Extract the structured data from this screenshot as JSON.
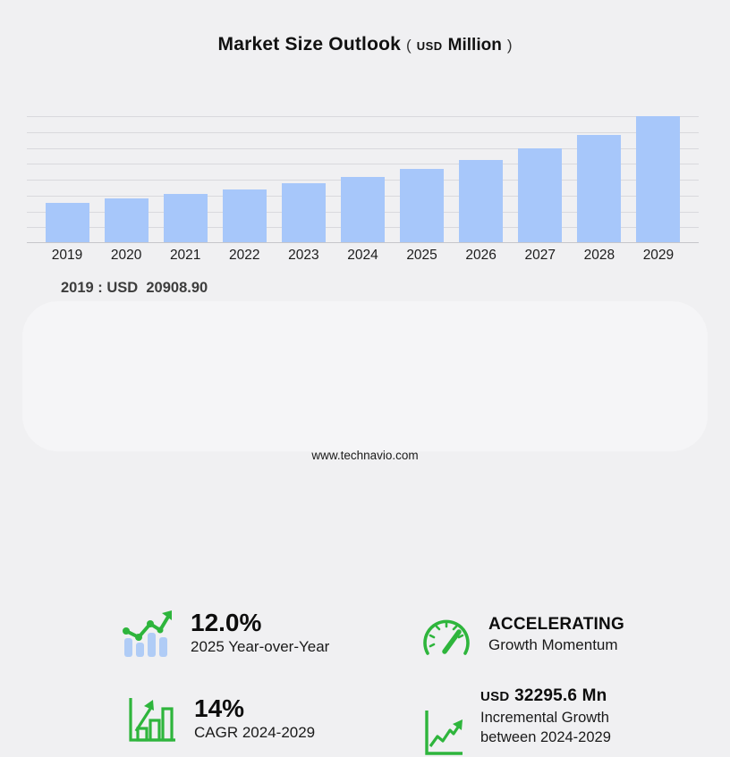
{
  "title": {
    "main": "Market Size Outlook",
    "paren_open": "(",
    "currency": "USD",
    "unit": "Million",
    "paren_close": ")"
  },
  "chart_data": {
    "type": "bar",
    "title": "Market Size Outlook (USD Million)",
    "categories": [
      "2019",
      "2020",
      "2021",
      "2022",
      "2023",
      "2024",
      "2025",
      "2026",
      "2027",
      "2028",
      "2029"
    ],
    "values": [
      20908.9,
      23200,
      25400,
      28000,
      31200,
      34400,
      38500,
      43200,
      49400,
      56700,
      66700
    ],
    "ylabel": "USD Million",
    "ylim": [
      0,
      67000
    ],
    "grid": true,
    "bar_color": "#a7c7fa",
    "labeled_point": {
      "category": "2019",
      "value": 20908.9
    }
  },
  "annotation": {
    "label": "2019 : USD  20908.90"
  },
  "stats": [
    {
      "icon": "bar-trend-icon",
      "value": "12.0%",
      "label": "2025 Year-over-Year"
    },
    {
      "icon": "speedometer-icon",
      "value": "ACCELERATING",
      "label": "Growth Momentum"
    },
    {
      "icon": "growth-bars-icon",
      "value": "14%",
      "label": "CAGR 2024-2029"
    },
    {
      "icon": "growth-line-icon",
      "value_prefix": "USD",
      "value": "32295.6 Mn",
      "label": "Incremental Growth between 2024-2029"
    }
  ],
  "colors": {
    "bar": "#a7c7fa",
    "icon_green": "#2eb53c",
    "icon_blue": "#b0ccf6",
    "gridline": "#d9d9dd",
    "panel": "#f5f5f7",
    "background": "#f0f0f2"
  },
  "footer": {
    "website": "www.technavio.com"
  }
}
